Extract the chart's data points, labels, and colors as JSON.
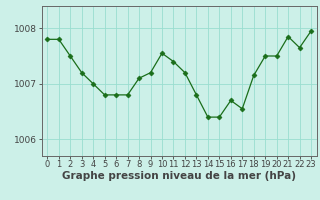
{
  "x": [
    0,
    1,
    2,
    3,
    4,
    5,
    6,
    7,
    8,
    9,
    10,
    11,
    12,
    13,
    14,
    15,
    16,
    17,
    18,
    19,
    20,
    21,
    22,
    23
  ],
  "y": [
    1007.8,
    1007.8,
    1007.5,
    1007.2,
    1007.0,
    1006.8,
    1006.8,
    1006.8,
    1007.1,
    1007.2,
    1007.55,
    1007.4,
    1007.2,
    1006.8,
    1006.4,
    1006.4,
    1006.7,
    1006.55,
    1007.15,
    1007.5,
    1007.5,
    1007.85,
    1007.65,
    1007.95
  ],
  "line_color": "#1a6e1a",
  "marker": "D",
  "marker_size": 2.5,
  "background_color": "#ccf0e8",
  "grid_color": "#99ddd0",
  "ylabel_ticks": [
    1006,
    1007,
    1008
  ],
  "ylim": [
    1005.7,
    1008.4
  ],
  "xlim": [
    -0.5,
    23.5
  ],
  "xtick_labels": [
    "0",
    "1",
    "2",
    "3",
    "4",
    "5",
    "6",
    "7",
    "8",
    "9",
    "10",
    "11",
    "12",
    "13",
    "14",
    "15",
    "16",
    "17",
    "18",
    "19",
    "20",
    "21",
    "22",
    "23"
  ],
  "xlabel": "Graphe pression niveau de la mer (hPa)",
  "xlabel_fontsize": 7.5,
  "tick_fontsize": 6,
  "ytick_fontsize": 6.5,
  "axis_color": "#444444",
  "spine_color": "#666666"
}
